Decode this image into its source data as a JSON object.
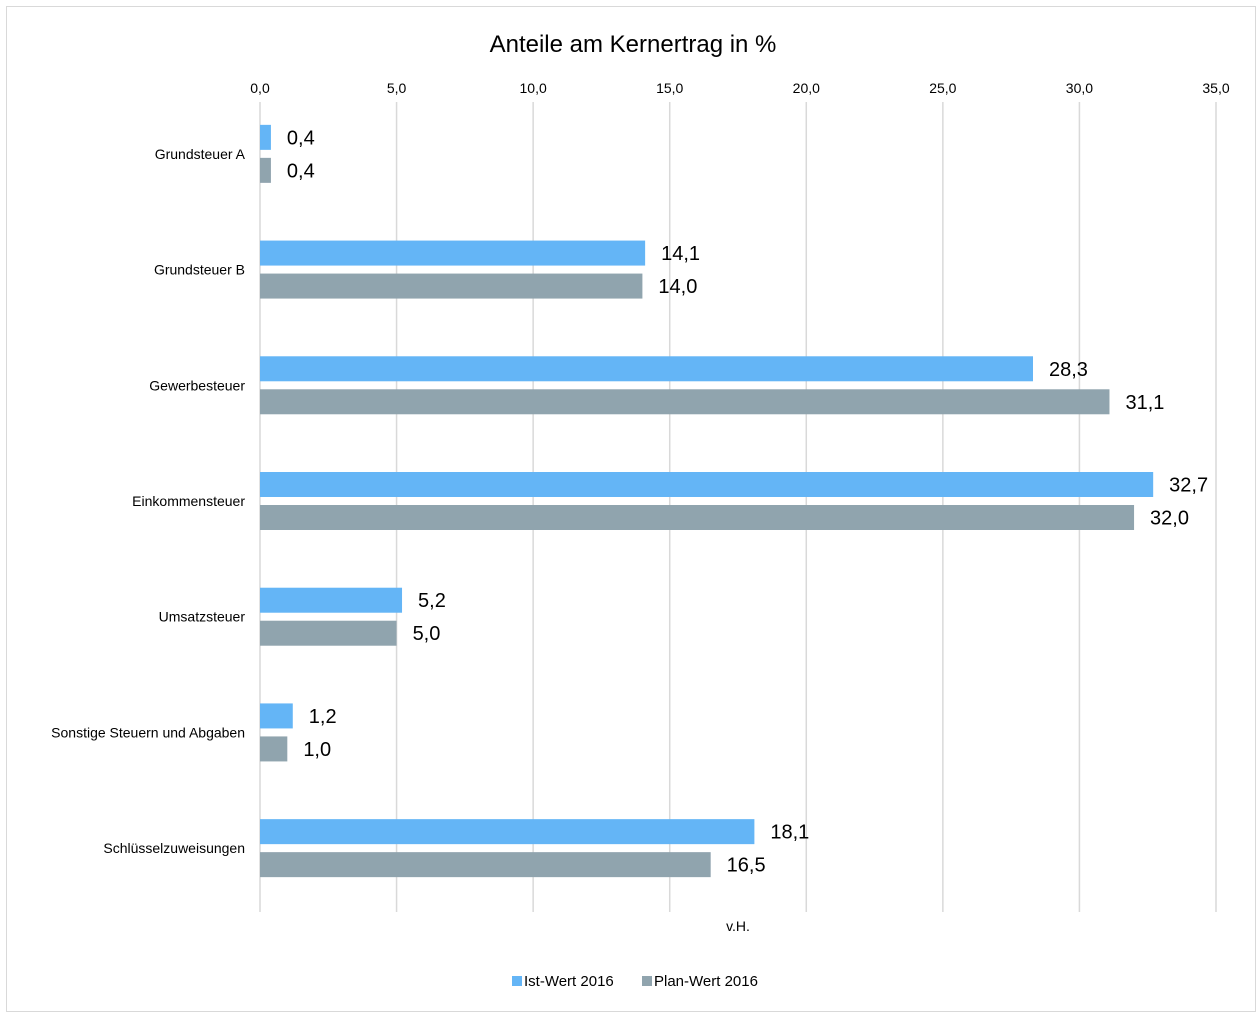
{
  "chart_data": {
    "type": "bar",
    "orientation": "horizontal",
    "title": "Anteile am Kernertrag in %",
    "xlabel": "v.H.",
    "ylabel": "",
    "xlim": [
      0,
      35
    ],
    "ticks": [
      "0,0",
      "5,0",
      "10,0",
      "15,0",
      "20,0",
      "25,0",
      "30,0",
      "35,0"
    ],
    "tick_values": [
      0,
      5,
      10,
      15,
      20,
      25,
      30,
      35
    ],
    "axis_position": "top",
    "grid": "vertical",
    "legend": "bottom",
    "categories": [
      "Grundsteuer A",
      "Grundsteuer B",
      "Gewerbesteuer",
      "Einkommensteuer",
      "Umsatzsteuer",
      "Sonstige Steuern und Abgaben",
      "Schlüsselzuweisungen"
    ],
    "series": [
      {
        "name": "Ist-Wert 2016",
        "color": "#64b5f6",
        "values": [
          0.4,
          14.1,
          28.3,
          32.7,
          5.2,
          1.2,
          18.1
        ],
        "labels": [
          "0,4",
          "14,1",
          "28,3",
          "32,7",
          "5,2",
          "1,2",
          "18,1"
        ]
      },
      {
        "name": "Plan-Wert 2016",
        "color": "#90a4ae",
        "values": [
          0.4,
          14.0,
          31.1,
          32.0,
          5.0,
          1.0,
          16.5
        ],
        "labels": [
          "0,4",
          "14,0",
          "31,1",
          "32,0",
          "5,0",
          "1,0",
          "16,5"
        ]
      }
    ],
    "gridline_color": "#d9d9d9"
  }
}
